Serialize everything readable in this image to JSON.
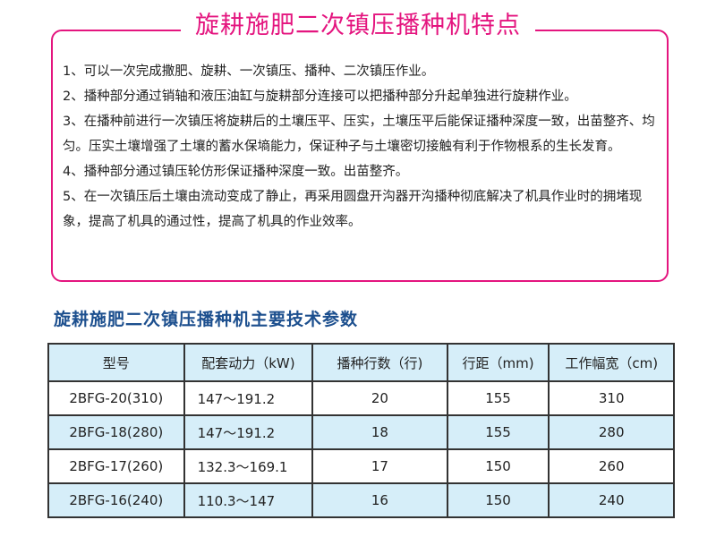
{
  "features": {
    "title": "旋耕施肥二次镇压播种机特点",
    "items": [
      "1、可以一次完成撒肥、旋耕、一次镇压、播种、二次镇压作业。",
      "2、播种部分通过销轴和液压油缸与旋耕部分连接可以把播种部分升起单独进行旋耕作业。",
      "3、在播种前进行一次镇压将旋耕后的土壤压平、压实，土壤压平后能保证播种深度一致，出苗整齐、均匀。压实土壤增强了土壤的蓄水保墒能力，保证种子与土壤密切接触有利于作物根系的生长发育。",
      "4、播种部分通过镇压轮仿形保证播种深度一致。出苗整齐。",
      "5、在一次镇压后土壤由流动变成了静止，再采用圆盘开沟器开沟播种彻底解决了机具作业时的拥堵现象，提高了机具的通过性，提高了机具的作业效率。"
    ]
  },
  "specs": {
    "title": "旋耕施肥二次镇压播种机主要技术参数",
    "headers": [
      "型号",
      "配套动力（kW)",
      "播种行数（行)",
      "行距（mm)",
      "工作幅宽（cm)"
    ],
    "rows": [
      [
        "2BFG-20(310)",
        "147～191.2",
        "20",
        "155",
        "310"
      ],
      [
        "2BFG-18(280)",
        "147～191.2",
        "18",
        "155",
        "280"
      ],
      [
        "2BFG-17(260)",
        "132.3～169.1",
        "17",
        "150",
        "260"
      ],
      [
        "2BFG-16(240)",
        "110.3～147",
        "16",
        "150",
        "240"
      ]
    ]
  },
  "colors": {
    "accent": "#e4157f",
    "heading": "#1c4f8e",
    "row_tint": "#d6eef9"
  }
}
